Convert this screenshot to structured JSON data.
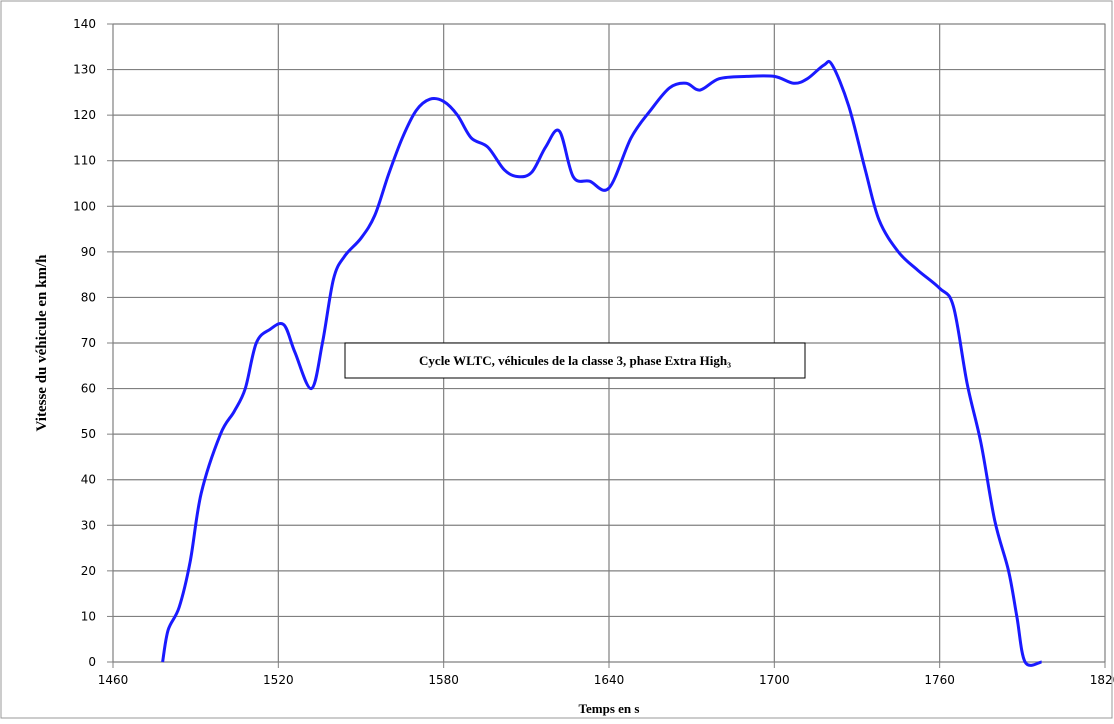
{
  "chart_data": {
    "type": "line",
    "annotation": "Cycle WLTC, véhicules de la classe 3, phase Extra High₃",
    "x_label": "Temps en s",
    "y_label": "Vitesse du véhicule en km/h",
    "x": [
      1478,
      1480,
      1484,
      1488,
      1492,
      1499,
      1504,
      1508,
      1512,
      1517,
      1522,
      1526,
      1532,
      1536,
      1540,
      1544,
      1550,
      1555,
      1560,
      1565,
      1570,
      1575,
      1580,
      1585,
      1590,
      1596,
      1602,
      1607,
      1612,
      1617,
      1622,
      1627,
      1633,
      1640,
      1648,
      1655,
      1662,
      1668,
      1673,
      1680,
      1690,
      1700,
      1707,
      1712,
      1718,
      1721,
      1727,
      1733,
      1738,
      1745,
      1752,
      1760,
      1765,
      1770,
      1775,
      1780,
      1785,
      1788,
      1791,
      1797
    ],
    "series": [
      {
        "name": "Vitesse",
        "color": "#1a1aff",
        "values": [
          0,
          7,
          12,
          22,
          37,
          50,
          55,
          60,
          70,
          73,
          74,
          68,
          60,
          70,
          84,
          89,
          93,
          98,
          107,
          115,
          121,
          123.5,
          123,
          120,
          115,
          113,
          108,
          106.5,
          107.5,
          113,
          116.5,
          106.5,
          105.5,
          104,
          115,
          121,
          126,
          127,
          125.5,
          128,
          128.5,
          128.5,
          127,
          128,
          131,
          131,
          122,
          108,
          97,
          90,
          86,
          82,
          78,
          61,
          48,
          31,
          20,
          10,
          0,
          0
        ]
      }
    ],
    "xlim": [
      1460,
      1820
    ],
    "xticks": [
      1460,
      1520,
      1580,
      1640,
      1700,
      1760,
      1820
    ],
    "ylim": [
      0,
      140
    ],
    "yticks": [
      0,
      10,
      20,
      30,
      40,
      50,
      60,
      70,
      80,
      90,
      100,
      110,
      120,
      130,
      140
    ],
    "grid": true
  }
}
